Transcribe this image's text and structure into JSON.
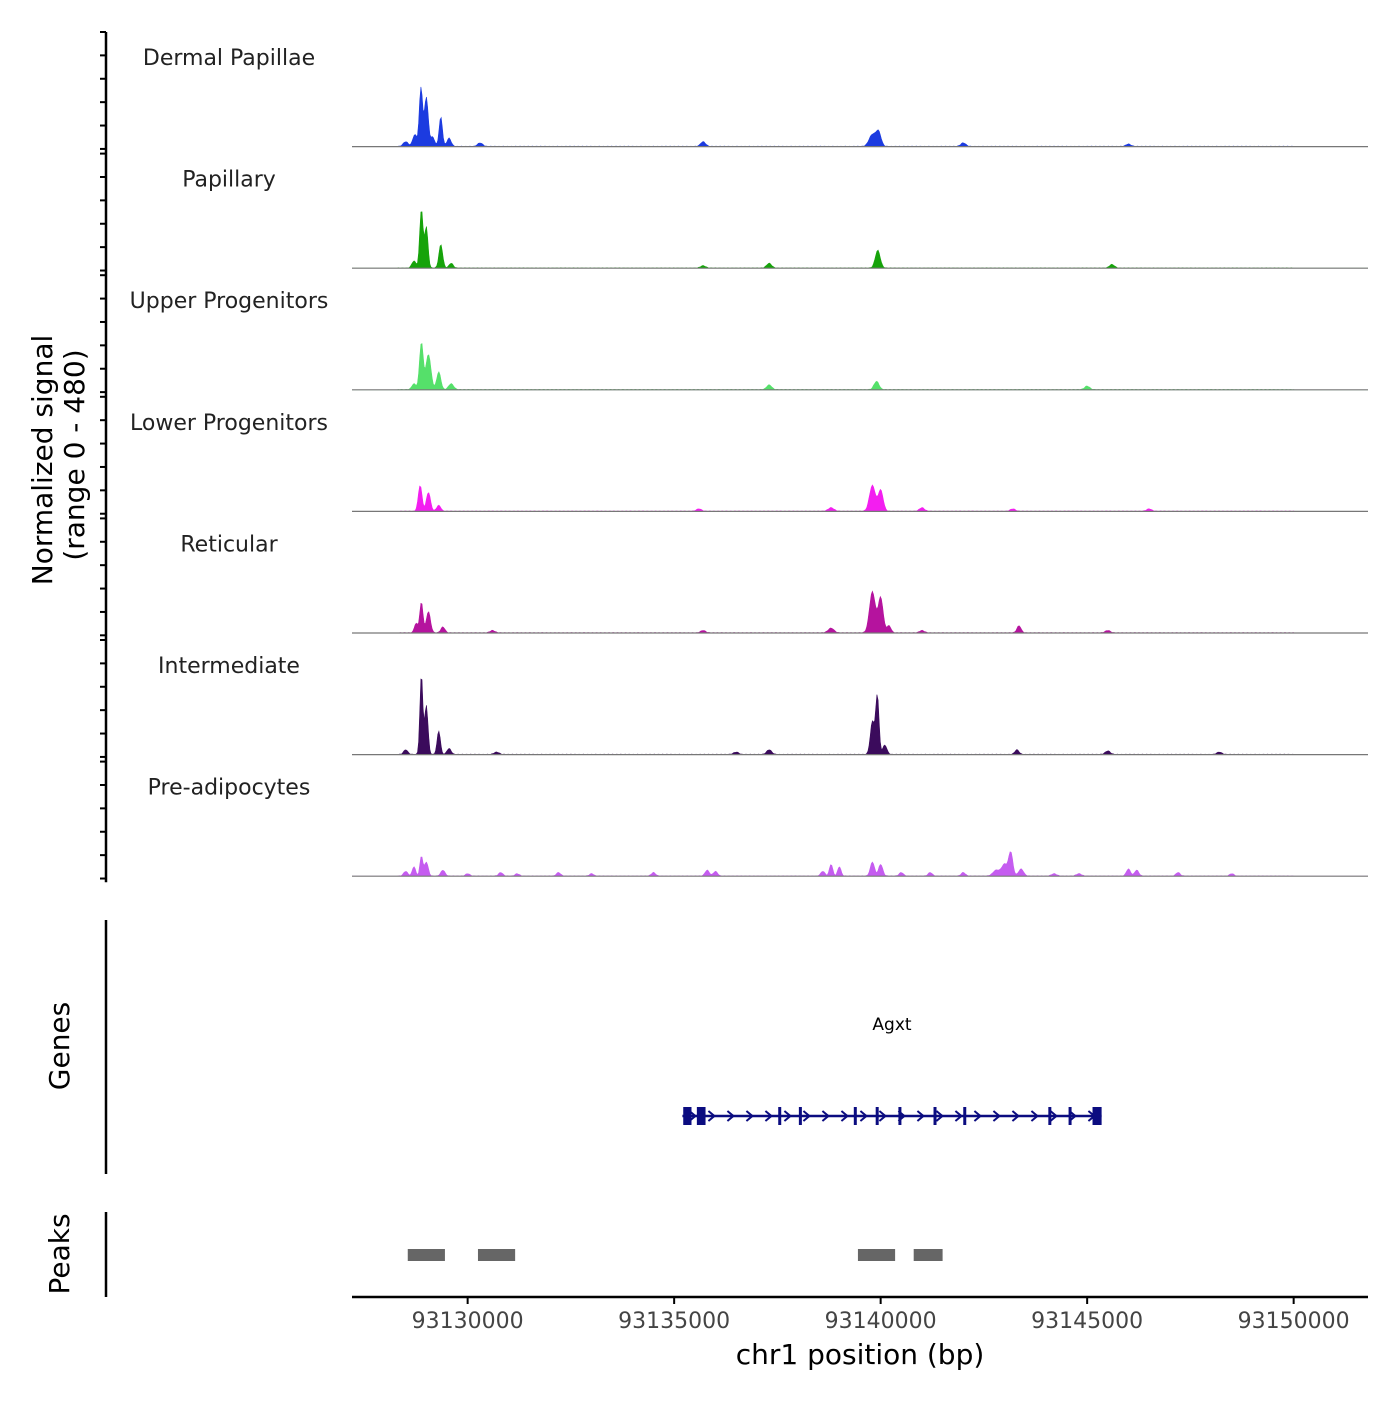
{
  "chart_data": {
    "type": "area",
    "title": "",
    "ylabel_line1": "Normalized signal",
    "ylabel_line2": "(range 0 - 480)",
    "xlabel": "chr1 position (bp)",
    "xlim": [
      93127200,
      93151800
    ],
    "ylim": [
      0,
      480
    ],
    "x_ticks": [
      93130000,
      93135000,
      93140000,
      93145000,
      93150000
    ],
    "x_tick_labels": [
      "93130000",
      "93135000",
      "93140000",
      "93145000",
      "93150000"
    ],
    "series": [
      {
        "name": "Dermal Papillae",
        "color": "#1c3be0",
        "peaks": [
          [
            93128500,
            0.04,
            60
          ],
          [
            93128720,
            0.1,
            50
          ],
          [
            93128870,
            0.5,
            40
          ],
          [
            93129000,
            0.42,
            45
          ],
          [
            93129150,
            0.08,
            50
          ],
          [
            93129350,
            0.25,
            40
          ],
          [
            93129550,
            0.07,
            50
          ],
          [
            93130300,
            0.03,
            60
          ],
          [
            93135700,
            0.04,
            60
          ],
          [
            93139800,
            0.1,
            80
          ],
          [
            93139950,
            0.12,
            60
          ],
          [
            93142000,
            0.03,
            60
          ],
          [
            93146000,
            0.02,
            60
          ]
        ]
      },
      {
        "name": "Papillary",
        "color": "#16a30a",
        "peaks": [
          [
            93128700,
            0.06,
            50
          ],
          [
            93128880,
            0.5,
            40
          ],
          [
            93129000,
            0.35,
            40
          ],
          [
            93129350,
            0.2,
            45
          ],
          [
            93129600,
            0.04,
            50
          ],
          [
            93135700,
            0.02,
            60
          ],
          [
            93137300,
            0.04,
            60
          ],
          [
            93139930,
            0.15,
            60
          ],
          [
            93145600,
            0.03,
            60
          ]
        ]
      },
      {
        "name": "Upper Progenitors",
        "color": "#55e06a",
        "peaks": [
          [
            93128700,
            0.05,
            50
          ],
          [
            93128880,
            0.4,
            45
          ],
          [
            93129050,
            0.3,
            60
          ],
          [
            93129300,
            0.15,
            50
          ],
          [
            93129600,
            0.05,
            60
          ],
          [
            93137300,
            0.04,
            60
          ],
          [
            93139900,
            0.07,
            60
          ],
          [
            93145000,
            0.03,
            60
          ]
        ]
      },
      {
        "name": "Lower Progenitors",
        "color": "#f31ef0",
        "peaks": [
          [
            93128850,
            0.22,
            45
          ],
          [
            93129050,
            0.16,
            50
          ],
          [
            93129300,
            0.05,
            50
          ],
          [
            93135600,
            0.02,
            60
          ],
          [
            93138800,
            0.03,
            70
          ],
          [
            93139800,
            0.22,
            70
          ],
          [
            93140000,
            0.18,
            60
          ],
          [
            93141000,
            0.03,
            60
          ],
          [
            93143200,
            0.02,
            60
          ],
          [
            93146500,
            0.02,
            60
          ]
        ]
      },
      {
        "name": "Reticular",
        "color": "#b5139e",
        "peaks": [
          [
            93128750,
            0.08,
            40
          ],
          [
            93128880,
            0.26,
            40
          ],
          [
            93129050,
            0.18,
            50
          ],
          [
            93129400,
            0.05,
            50
          ],
          [
            93130600,
            0.02,
            60
          ],
          [
            93135700,
            0.02,
            60
          ],
          [
            93138800,
            0.04,
            70
          ],
          [
            93139800,
            0.35,
            70
          ],
          [
            93140000,
            0.3,
            60
          ],
          [
            93140200,
            0.06,
            50
          ],
          [
            93141000,
            0.02,
            60
          ],
          [
            93143350,
            0.06,
            50
          ],
          [
            93145500,
            0.02,
            60
          ]
        ]
      },
      {
        "name": "Intermediate",
        "color": "#3b0b5c",
        "peaks": [
          [
            93128500,
            0.04,
            50
          ],
          [
            93128880,
            0.68,
            35
          ],
          [
            93129000,
            0.42,
            40
          ],
          [
            93129300,
            0.2,
            40
          ],
          [
            93129550,
            0.05,
            50
          ],
          [
            93130700,
            0.02,
            60
          ],
          [
            93136500,
            0.02,
            60
          ],
          [
            93137300,
            0.04,
            60
          ],
          [
            93139800,
            0.28,
            50
          ],
          [
            93139920,
            0.5,
            40
          ],
          [
            93140100,
            0.08,
            50
          ],
          [
            93143300,
            0.04,
            50
          ],
          [
            93145500,
            0.03,
            60
          ],
          [
            93148200,
            0.02,
            60
          ]
        ]
      },
      {
        "name": "Pre-adipocytes",
        "color": "#c55cf0",
        "peaks": [
          [
            93128500,
            0.04,
            50
          ],
          [
            93128700,
            0.08,
            40
          ],
          [
            93128880,
            0.17,
            35
          ],
          [
            93129000,
            0.12,
            45
          ],
          [
            93129400,
            0.05,
            50
          ],
          [
            93130000,
            0.02,
            50
          ],
          [
            93130800,
            0.03,
            50
          ],
          [
            93131200,
            0.02,
            50
          ],
          [
            93132200,
            0.03,
            50
          ],
          [
            93133000,
            0.02,
            50
          ],
          [
            93134500,
            0.03,
            50
          ],
          [
            93135800,
            0.05,
            50
          ],
          [
            93136000,
            0.04,
            50
          ],
          [
            93138600,
            0.04,
            50
          ],
          [
            93138800,
            0.1,
            40
          ],
          [
            93139000,
            0.08,
            40
          ],
          [
            93139800,
            0.12,
            50
          ],
          [
            93140000,
            0.1,
            50
          ],
          [
            93140500,
            0.03,
            50
          ],
          [
            93141200,
            0.03,
            50
          ],
          [
            93142000,
            0.03,
            50
          ],
          [
            93142800,
            0.05,
            80
          ],
          [
            93143000,
            0.1,
            70
          ],
          [
            93143150,
            0.2,
            50
          ],
          [
            93143400,
            0.06,
            60
          ],
          [
            93144200,
            0.02,
            60
          ],
          [
            93144800,
            0.02,
            60
          ],
          [
            93146000,
            0.06,
            50
          ],
          [
            93146200,
            0.05,
            50
          ],
          [
            93147200,
            0.03,
            50
          ],
          [
            93148500,
            0.02,
            50
          ]
        ]
      }
    ],
    "genes_label": "Genes",
    "peaks_label": "Peaks",
    "gene": {
      "name": "Agxt",
      "color": "#0b0c80",
      "start": 93135200,
      "end": 93145350,
      "strand": "+",
      "exons": [
        [
          93135220,
          93135420
        ],
        [
          93135550,
          93135760
        ],
        [
          93137520,
          93137570
        ],
        [
          93138020,
          93138070
        ],
        [
          93139350,
          93139400
        ],
        [
          93139880,
          93139930
        ],
        [
          93140430,
          93140480
        ],
        [
          93141280,
          93141330
        ],
        [
          93142000,
          93142050
        ],
        [
          93144060,
          93144110
        ],
        [
          93144550,
          93144620
        ],
        [
          93145130,
          93145350
        ]
      ]
    },
    "peak_regions": [
      [
        93128550,
        93129450
      ],
      [
        93130250,
        93131150
      ],
      [
        93139450,
        93140350
      ],
      [
        93140800,
        93141500
      ]
    ],
    "peak_color": "#666666"
  }
}
